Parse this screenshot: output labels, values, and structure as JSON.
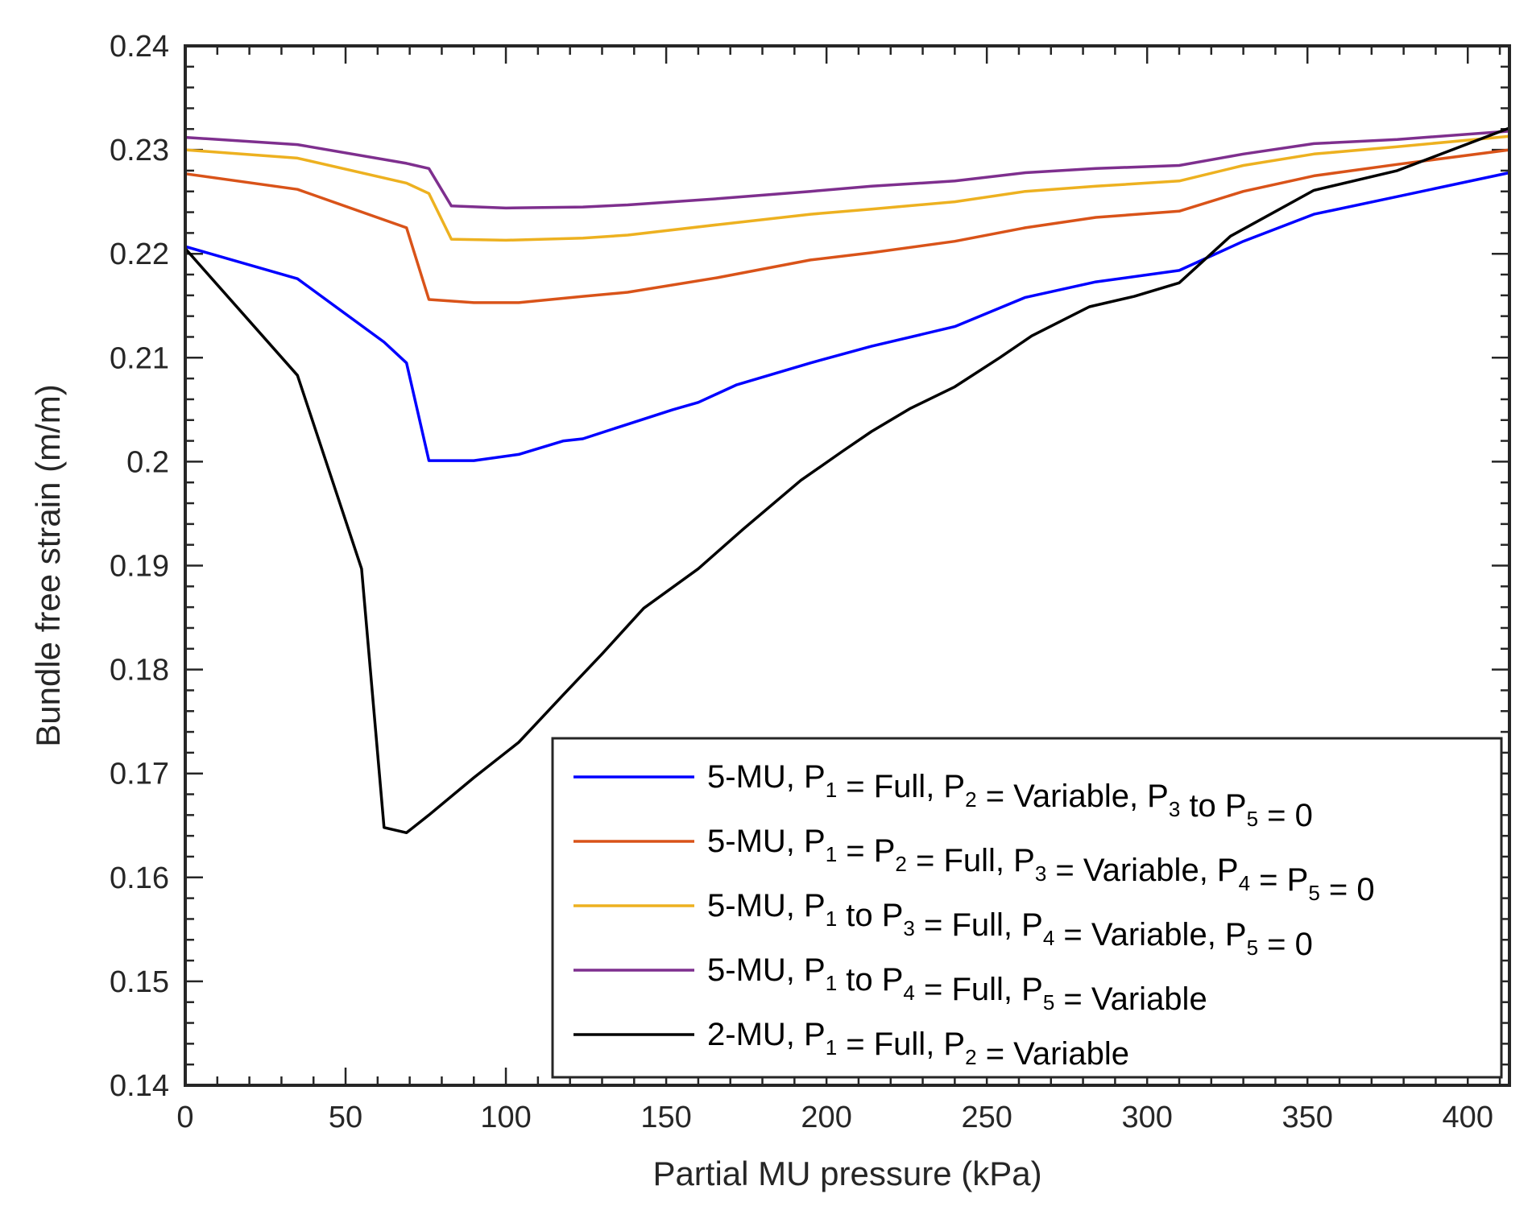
{
  "chart_data": {
    "type": "line",
    "title": "",
    "xlabel": "Partial MU pressure (kPa)",
    "ylabel": "Bundle free strain (m/m)",
    "xlim": [
      0,
      413
    ],
    "ylim": [
      0.14,
      0.24
    ],
    "grid": false,
    "legend_position": "bottom-right",
    "xticks": [
      0,
      50,
      100,
      150,
      200,
      250,
      300,
      350,
      400
    ],
    "xtick_labels": [
      "0",
      "50",
      "100",
      "150",
      "200",
      "250",
      "300",
      "350",
      "400"
    ],
    "yticks": [
      0.14,
      0.15,
      0.16,
      0.17,
      0.18,
      0.19,
      0.2,
      0.21,
      0.22,
      0.23,
      0.24
    ],
    "ytick_labels": [
      "0.14",
      "0.15",
      "0.16",
      "0.17",
      "0.18",
      "0.19",
      "0.2",
      "0.21",
      "0.22",
      "0.23",
      "0.24"
    ],
    "series": [
      {
        "name": "5-MU, P1 = Full, P2 = Variable, P3 to P5 = 0",
        "legend_parts": [
          [
            "5-MU, P",
            ""
          ],
          [
            "1",
            "sub"
          ],
          [
            " = Full, P",
            ""
          ],
          [
            "2",
            "sub"
          ],
          [
            " = Variable, P",
            ""
          ],
          [
            "3",
            "sub"
          ],
          [
            " to P",
            ""
          ],
          [
            "5",
            "sub"
          ],
          [
            " = 0",
            ""
          ]
        ],
        "color": "#0000ff",
        "x": [
          0,
          35,
          62,
          69,
          76,
          90,
          104,
          118,
          124,
          138,
          152,
          160,
          172,
          195,
          214,
          240,
          262,
          284,
          310,
          330,
          352,
          378,
          413
        ],
        "y": [
          0.2207,
          0.2176,
          0.2115,
          0.2095,
          0.2001,
          0.2001,
          0.2007,
          0.202,
          0.2022,
          0.2036,
          0.205,
          0.2057,
          0.2074,
          0.2095,
          0.2111,
          0.213,
          0.2158,
          0.2173,
          0.2184,
          0.2212,
          0.2238,
          0.2255,
          0.2278
        ]
      },
      {
        "name": "5-MU, P1 = P2 = Full, P3 = Variable, P4 = P5 = 0",
        "legend_parts": [
          [
            "5-MU, P",
            ""
          ],
          [
            "1",
            "sub"
          ],
          [
            " = P",
            ""
          ],
          [
            "2",
            "sub"
          ],
          [
            " = Full, P",
            ""
          ],
          [
            "3",
            "sub"
          ],
          [
            " = Variable, P",
            ""
          ],
          [
            "4",
            "sub"
          ],
          [
            " = P",
            ""
          ],
          [
            "5",
            "sub"
          ],
          [
            " = 0",
            ""
          ]
        ],
        "color": "#d95319",
        "x": [
          0,
          35,
          69,
          76,
          90,
          104,
          124,
          138,
          166,
          195,
          214,
          240,
          262,
          284,
          310,
          330,
          352,
          378,
          413
        ],
        "y": [
          0.2277,
          0.2262,
          0.2225,
          0.2156,
          0.2153,
          0.2153,
          0.2159,
          0.2163,
          0.2177,
          0.2194,
          0.2201,
          0.2212,
          0.2225,
          0.2235,
          0.2241,
          0.226,
          0.2275,
          0.2286,
          0.23
        ]
      },
      {
        "name": "5-MU, P1 to P3 = Full, P4 = Variable, P5 = 0",
        "legend_parts": [
          [
            "5-MU, P",
            ""
          ],
          [
            "1",
            "sub"
          ],
          [
            " to P",
            ""
          ],
          [
            "3",
            "sub"
          ],
          [
            " = Full, P",
            ""
          ],
          [
            "4",
            "sub"
          ],
          [
            " = Variable, P",
            ""
          ],
          [
            "5",
            "sub"
          ],
          [
            " = 0",
            ""
          ]
        ],
        "color": "#edb120",
        "x": [
          0,
          35,
          69,
          76,
          83,
          100,
          124,
          138,
          166,
          195,
          214,
          240,
          262,
          284,
          310,
          330,
          352,
          378,
          413
        ],
        "y": [
          0.23,
          0.2292,
          0.2268,
          0.2258,
          0.2214,
          0.2213,
          0.2215,
          0.2218,
          0.2228,
          0.2238,
          0.2243,
          0.225,
          0.226,
          0.2265,
          0.227,
          0.2285,
          0.2296,
          0.2303,
          0.2313
        ]
      },
      {
        "name": "5-MU, P1 to P4 = Full, P5 = Variable",
        "legend_parts": [
          [
            "5-MU, P",
            ""
          ],
          [
            "1",
            "sub"
          ],
          [
            " to P",
            ""
          ],
          [
            "4",
            "sub"
          ],
          [
            " = Full, P",
            ""
          ],
          [
            "5",
            "sub"
          ],
          [
            " = Variable",
            ""
          ]
        ],
        "color": "#7e2f8e",
        "x": [
          0,
          35,
          69,
          76,
          83,
          100,
          124,
          138,
          166,
          195,
          214,
          240,
          262,
          284,
          310,
          330,
          352,
          378,
          413
        ],
        "y": [
          0.2312,
          0.2305,
          0.2287,
          0.2282,
          0.2246,
          0.2244,
          0.2245,
          0.2247,
          0.2253,
          0.226,
          0.2265,
          0.227,
          0.2278,
          0.2282,
          0.2285,
          0.2296,
          0.2306,
          0.231,
          0.2318
        ]
      },
      {
        "name": "2-MU, P1 = Full, P2 = Variable",
        "legend_parts": [
          [
            "2-MU, P",
            ""
          ],
          [
            "1",
            "sub"
          ],
          [
            " = Full, P",
            ""
          ],
          [
            "2",
            "sub"
          ],
          [
            " = Variable",
            ""
          ]
        ],
        "color": "#000000",
        "x": [
          0,
          35,
          55,
          62,
          69,
          76,
          90,
          104,
          118,
          130,
          143,
          160,
          174,
          192,
          205,
          214,
          226,
          240,
          254,
          264,
          282,
          296,
          310,
          326,
          352,
          378,
          413
        ],
        "y": [
          0.2205,
          0.2083,
          0.1897,
          0.1648,
          0.1643,
          0.166,
          0.1696,
          0.173,
          0.1776,
          0.1815,
          0.1859,
          0.1897,
          0.1935,
          0.1982,
          0.201,
          0.2029,
          0.2051,
          0.2072,
          0.21,
          0.2121,
          0.2149,
          0.2159,
          0.2172,
          0.2217,
          0.2261,
          0.228,
          0.2321
        ]
      }
    ]
  }
}
